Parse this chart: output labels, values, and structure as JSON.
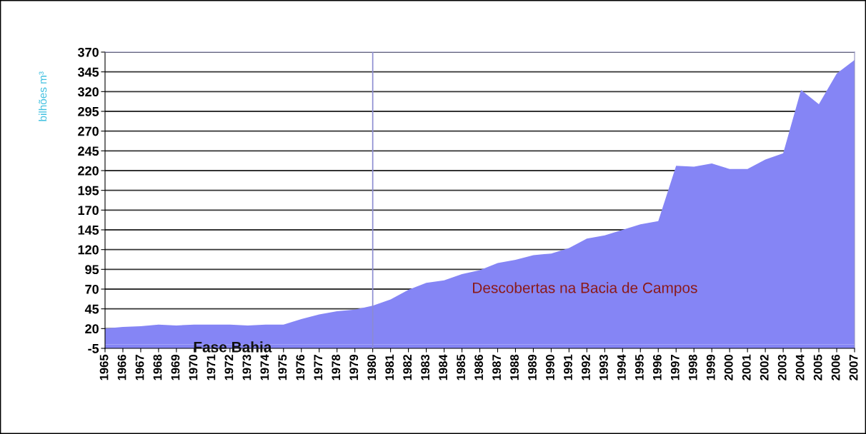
{
  "chart_data": {
    "type": "area",
    "ylabel": "bilhões m³",
    "categories": [
      "1965",
      "1966",
      "1967",
      "1968",
      "1969",
      "1970",
      "1971",
      "1972",
      "1973",
      "1974",
      "1975",
      "1976",
      "1977",
      "1978",
      "1979",
      "1980",
      "1981",
      "1982",
      "1983",
      "1984",
      "1985",
      "1986",
      "1987",
      "1988",
      "1989",
      "1990",
      "1991",
      "1992",
      "1993",
      "1994",
      "1995",
      "1996",
      "1997",
      "1998",
      "1999",
      "2000",
      "2001",
      "2002",
      "2003",
      "2004",
      "2005",
      "2006",
      "2007"
    ],
    "values": [
      20,
      22,
      23,
      25,
      24,
      25,
      25,
      25,
      24,
      25,
      25,
      32,
      38,
      42,
      44,
      49,
      57,
      69,
      78,
      81,
      89,
      94,
      103,
      107,
      113,
      115,
      122,
      134,
      138,
      145,
      152,
      156,
      226,
      225,
      229,
      222,
      222,
      234,
      242,
      322,
      304,
      343,
      360
    ],
    "color": "#8585f5",
    "ylim": [
      -5,
      370
    ],
    "yticks": [
      -5,
      20,
      45,
      70,
      95,
      120,
      145,
      170,
      195,
      220,
      245,
      270,
      295,
      320,
      345,
      370
    ],
    "grid": "y",
    "ref_lines": [
      {
        "axis": "x",
        "value": "1980",
        "color": "#8c8cd0"
      }
    ],
    "bands": [
      {
        "axis": "y",
        "from": -5,
        "to": 0,
        "color": "#8585f5"
      }
    ],
    "annotations": [
      "Fase Bahia",
      "Descobertas na Bacia de Campos"
    ]
  }
}
